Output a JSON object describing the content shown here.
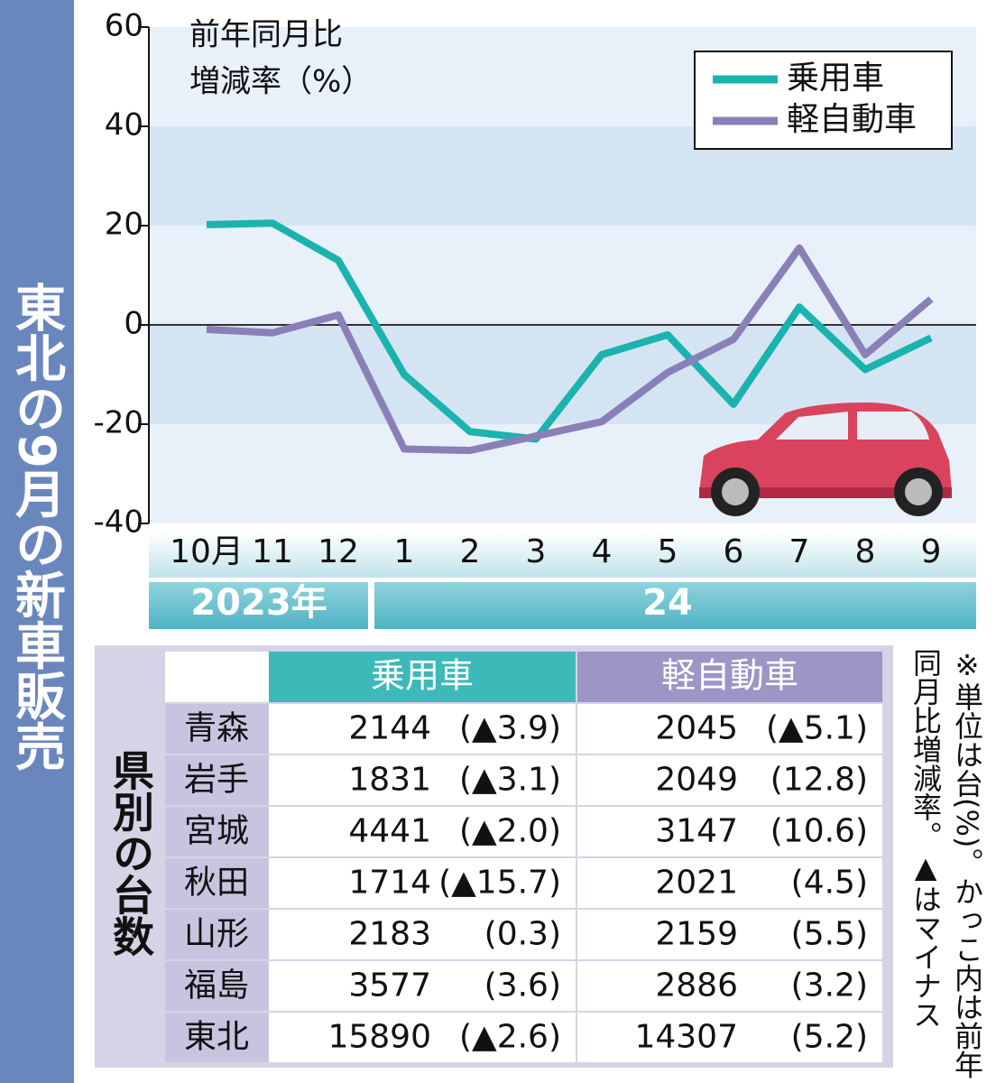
{
  "title": "東北の9月の新車販売",
  "chart_data": {
    "type": "line",
    "y_label": [
      "前年同月比",
      "増減率（%）"
    ],
    "categories": [
      "10月",
      "11",
      "12",
      "1",
      "2",
      "3",
      "4",
      "5",
      "6",
      "7",
      "8",
      "9"
    ],
    "x_group_labels": [
      "2023年",
      "24"
    ],
    "series": [
      {
        "name": "乗用車",
        "color": "#1ab3ad",
        "values": [
          20.2,
          20.5,
          13,
          -10,
          -21.5,
          -23,
          -6,
          -2,
          -16,
          3.6,
          -9,
          -2.6
        ]
      },
      {
        "name": "軽自動車",
        "color": "#8a80b8",
        "values": [
          -0.9,
          -1.6,
          2,
          -25,
          -25.3,
          -22.4,
          -19.5,
          -9.6,
          -2.9,
          15.5,
          -6,
          5.2
        ]
      }
    ],
    "ylim": [
      -40,
      60
    ],
    "yticks": [
      -40,
      -20,
      0,
      20,
      40,
      60
    ],
    "legend": "upper right"
  },
  "table": {
    "label": "県別の台数",
    "columns": [
      "乗用車",
      "軽自動車"
    ],
    "rows": [
      [
        "青森",
        2144,
        "(▲3.9)",
        2045,
        "(▲5.1)"
      ],
      [
        "岩手",
        1831,
        "(▲3.1)",
        2049,
        "(12.8)"
      ],
      [
        "宮城",
        4441,
        "(▲2.0)",
        3147,
        "(10.6)"
      ],
      [
        "秋田",
        1714,
        "(▲15.7)",
        2021,
        "(4.5)"
      ],
      [
        "山形",
        2183,
        "(0.3)",
        2159,
        "(5.5)"
      ],
      [
        "福島",
        3577,
        "(3.6)",
        2886,
        "(3.2)"
      ],
      [
        "東北",
        15890,
        "(▲2.6)",
        14307,
        "(5.2)"
      ]
    ]
  },
  "note": [
    "※単位は台(%)。かっこ内は前年",
    "同月比増減率。▲はマイナス"
  ]
}
